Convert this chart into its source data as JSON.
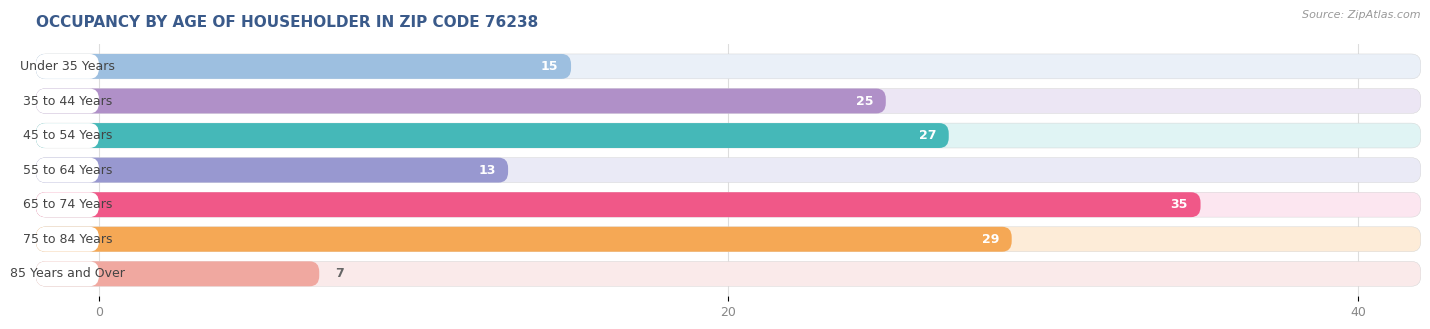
{
  "title": "OCCUPANCY BY AGE OF HOUSEHOLDER IN ZIP CODE 76238",
  "source": "Source: ZipAtlas.com",
  "categories": [
    "Under 35 Years",
    "35 to 44 Years",
    "45 to 54 Years",
    "55 to 64 Years",
    "65 to 74 Years",
    "75 to 84 Years",
    "85 Years and Over"
  ],
  "values": [
    15,
    25,
    27,
    13,
    35,
    29,
    7
  ],
  "bar_colors": [
    "#9dbfe0",
    "#b090c8",
    "#45b8b8",
    "#9898d0",
    "#f05888",
    "#f5a855",
    "#f0a8a0"
  ],
  "bar_bg_colors": [
    "#eaf0f8",
    "#ece6f4",
    "#e0f4f4",
    "#eaeaf6",
    "#fce6f0",
    "#fdecd8",
    "#faeaea"
  ],
  "label_bg_color": "#ffffff",
  "xlim_left": -2,
  "xlim_right": 42,
  "xticks": [
    0,
    20,
    40
  ],
  "title_fontsize": 11,
  "source_fontsize": 8,
  "label_fontsize": 9,
  "value_fontsize": 9,
  "background_color": "#ffffff",
  "grid_color": "#dddddd",
  "title_color": "#3a5a8a",
  "source_color": "#999999",
  "label_text_color": "#444444",
  "value_white_threshold": 10
}
